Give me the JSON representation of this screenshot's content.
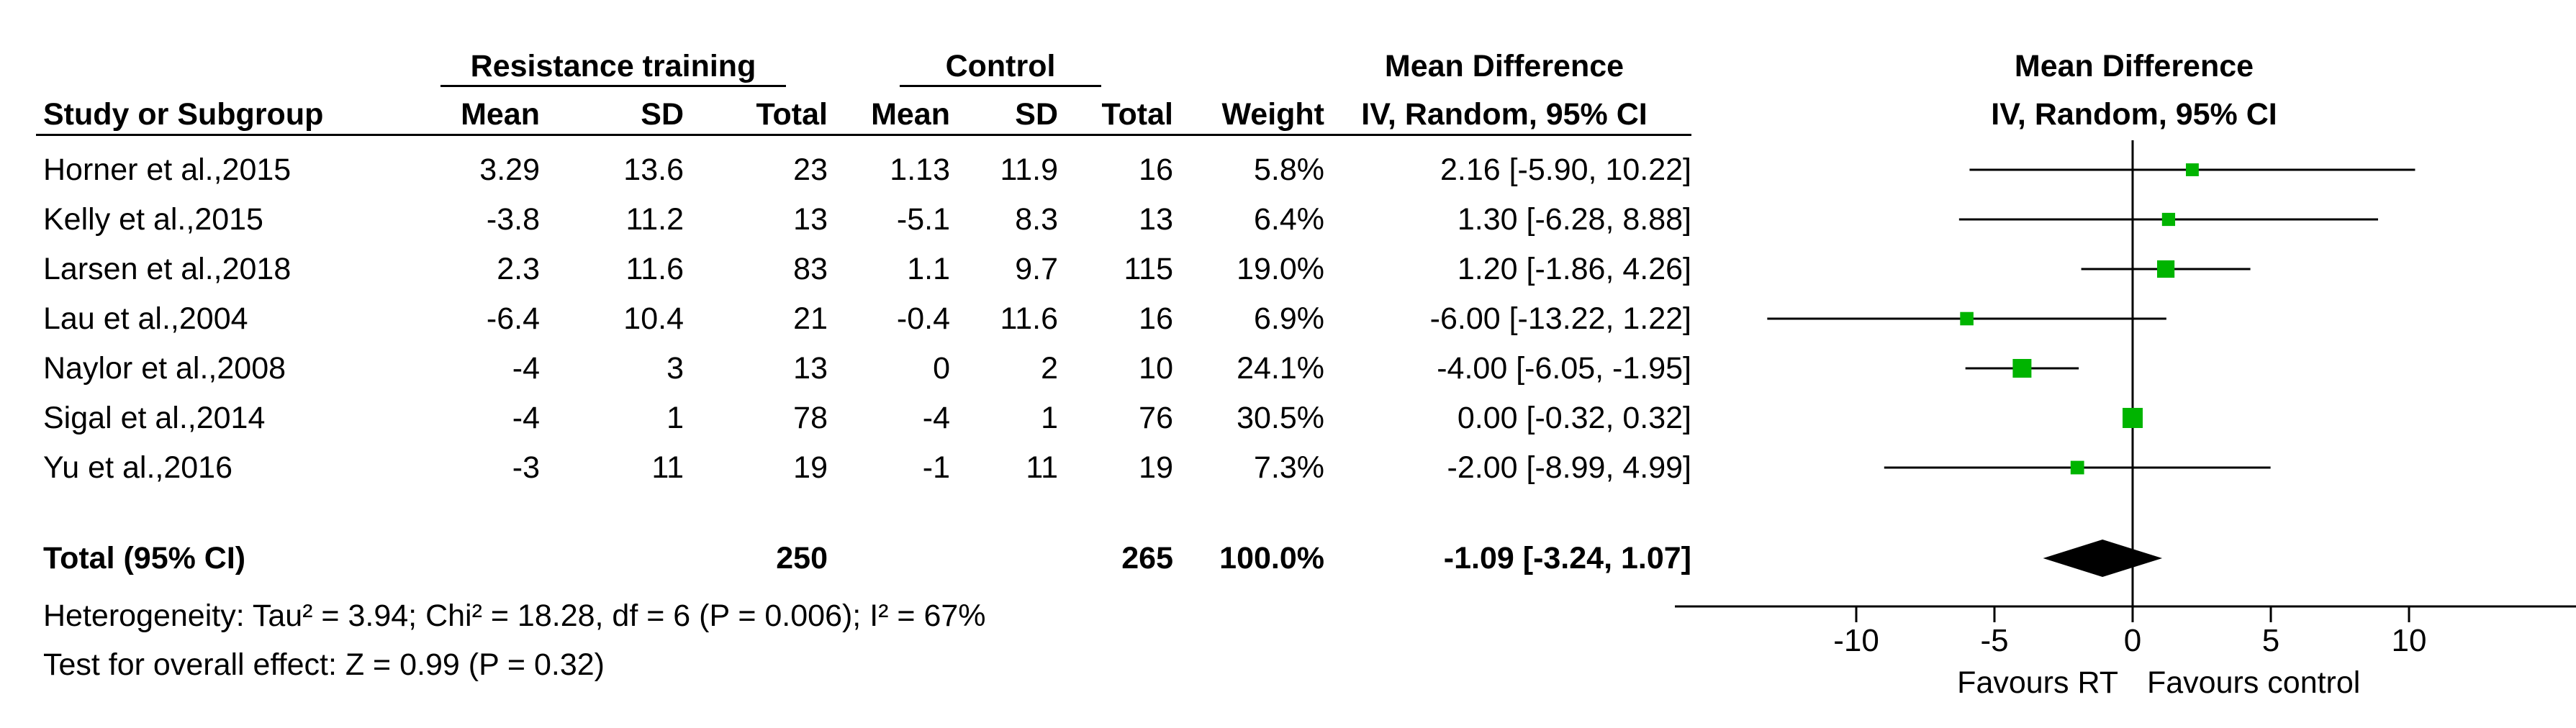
{
  "header": {
    "group1": "Resistance training",
    "group2": "Control",
    "md_title": "Mean Difference",
    "plot_title": "Mean Difference",
    "col_study": "Study or Subgroup",
    "col_mean1": "Mean",
    "col_sd1": "SD",
    "col_total1": "Total",
    "col_mean2": "Mean",
    "col_sd2": "SD",
    "col_total2": "Total",
    "col_weight": "Weight",
    "col_md": "IV, Random, 95% CI",
    "col_plot": "IV, Random, 95% CI"
  },
  "rows": [
    {
      "study": "Horner et al.,2015",
      "mean1": "3.29",
      "sd1": "13.6",
      "total1": "23",
      "mean2": "1.13",
      "sd2": "11.9",
      "total2": "16",
      "weight": "5.8%",
      "md": "2.16 [-5.90, 10.22]"
    },
    {
      "study": "Kelly et al.,2015",
      "mean1": "-3.8",
      "sd1": "11.2",
      "total1": "13",
      "mean2": "-5.1",
      "sd2": "8.3",
      "total2": "13",
      "weight": "6.4%",
      "md": "1.30 [-6.28, 8.88]"
    },
    {
      "study": "Larsen et al.,2018",
      "mean1": "2.3",
      "sd1": "11.6",
      "total1": "83",
      "mean2": "1.1",
      "sd2": "9.7",
      "total2": "115",
      "weight": "19.0%",
      "md": "1.20 [-1.86, 4.26]"
    },
    {
      "study": "Lau et al.,2004",
      "mean1": "-6.4",
      "sd1": "10.4",
      "total1": "21",
      "mean2": "-0.4",
      "sd2": "11.6",
      "total2": "16",
      "weight": "6.9%",
      "md": "-6.00 [-13.22, 1.22]"
    },
    {
      "study": "Naylor et al.,2008",
      "mean1": "-4",
      "sd1": "3",
      "total1": "13",
      "mean2": "0",
      "sd2": "2",
      "total2": "10",
      "weight": "24.1%",
      "md": "-4.00 [-6.05, -1.95]"
    },
    {
      "study": "Sigal et al.,2014",
      "mean1": "-4",
      "sd1": "1",
      "total1": "78",
      "mean2": "-4",
      "sd2": "1",
      "total2": "76",
      "weight": "30.5%",
      "md": "0.00 [-0.32, 0.32]"
    },
    {
      "study": "Yu et al.,2016",
      "mean1": "-3",
      "sd1": "11",
      "total1": "19",
      "mean2": "-1",
      "sd2": "11",
      "total2": "19",
      "weight": "7.3%",
      "md": "-2.00 [-8.99, 4.99]"
    }
  ],
  "total": {
    "label": "Total (95% CI)",
    "total1": "250",
    "total2": "265",
    "weight": "100.0%",
    "md": "-1.09 [-3.24, 1.07]"
  },
  "footer": {
    "heterogeneity": "Heterogeneity: Tau² = 3.94; Chi² = 18.28, df = 6 (P = 0.006); I² = 67%",
    "overall": "Test for overall effect: Z = 0.99 (P = 0.32)"
  },
  "chart_data": {
    "type": "forest",
    "xlim": [
      -15,
      15
    ],
    "x_ticks": [
      -10,
      -5,
      0,
      5,
      10
    ],
    "x_tick_labels": [
      "-10",
      "-5",
      "0",
      "5",
      "10"
    ],
    "favours_left": "Favours RT",
    "favours_right": "Favours control",
    "marker_color": "#00b400",
    "studies": [
      {
        "study": "Horner et al.,2015",
        "md": 2.16,
        "lower": -5.9,
        "upper": 10.22,
        "weight": 5.8
      },
      {
        "study": "Kelly et al.,2015",
        "md": 1.3,
        "lower": -6.28,
        "upper": 8.88,
        "weight": 6.4
      },
      {
        "study": "Larsen et al.,2018",
        "md": 1.2,
        "lower": -1.86,
        "upper": 4.26,
        "weight": 19.0
      },
      {
        "study": "Lau et al.,2004",
        "md": -6.0,
        "lower": -13.22,
        "upper": 1.22,
        "weight": 6.9
      },
      {
        "study": "Naylor et al.,2008",
        "md": -4.0,
        "lower": -6.05,
        "upper": -1.95,
        "weight": 24.1
      },
      {
        "study": "Sigal et al.,2014",
        "md": 0.0,
        "lower": -0.32,
        "upper": 0.32,
        "weight": 30.5
      },
      {
        "study": "Yu et al.,2016",
        "md": -2.0,
        "lower": -8.99,
        "upper": 4.99,
        "weight": 7.3
      }
    ],
    "pooled": {
      "md": -1.09,
      "lower": -3.24,
      "upper": 1.07
    }
  }
}
